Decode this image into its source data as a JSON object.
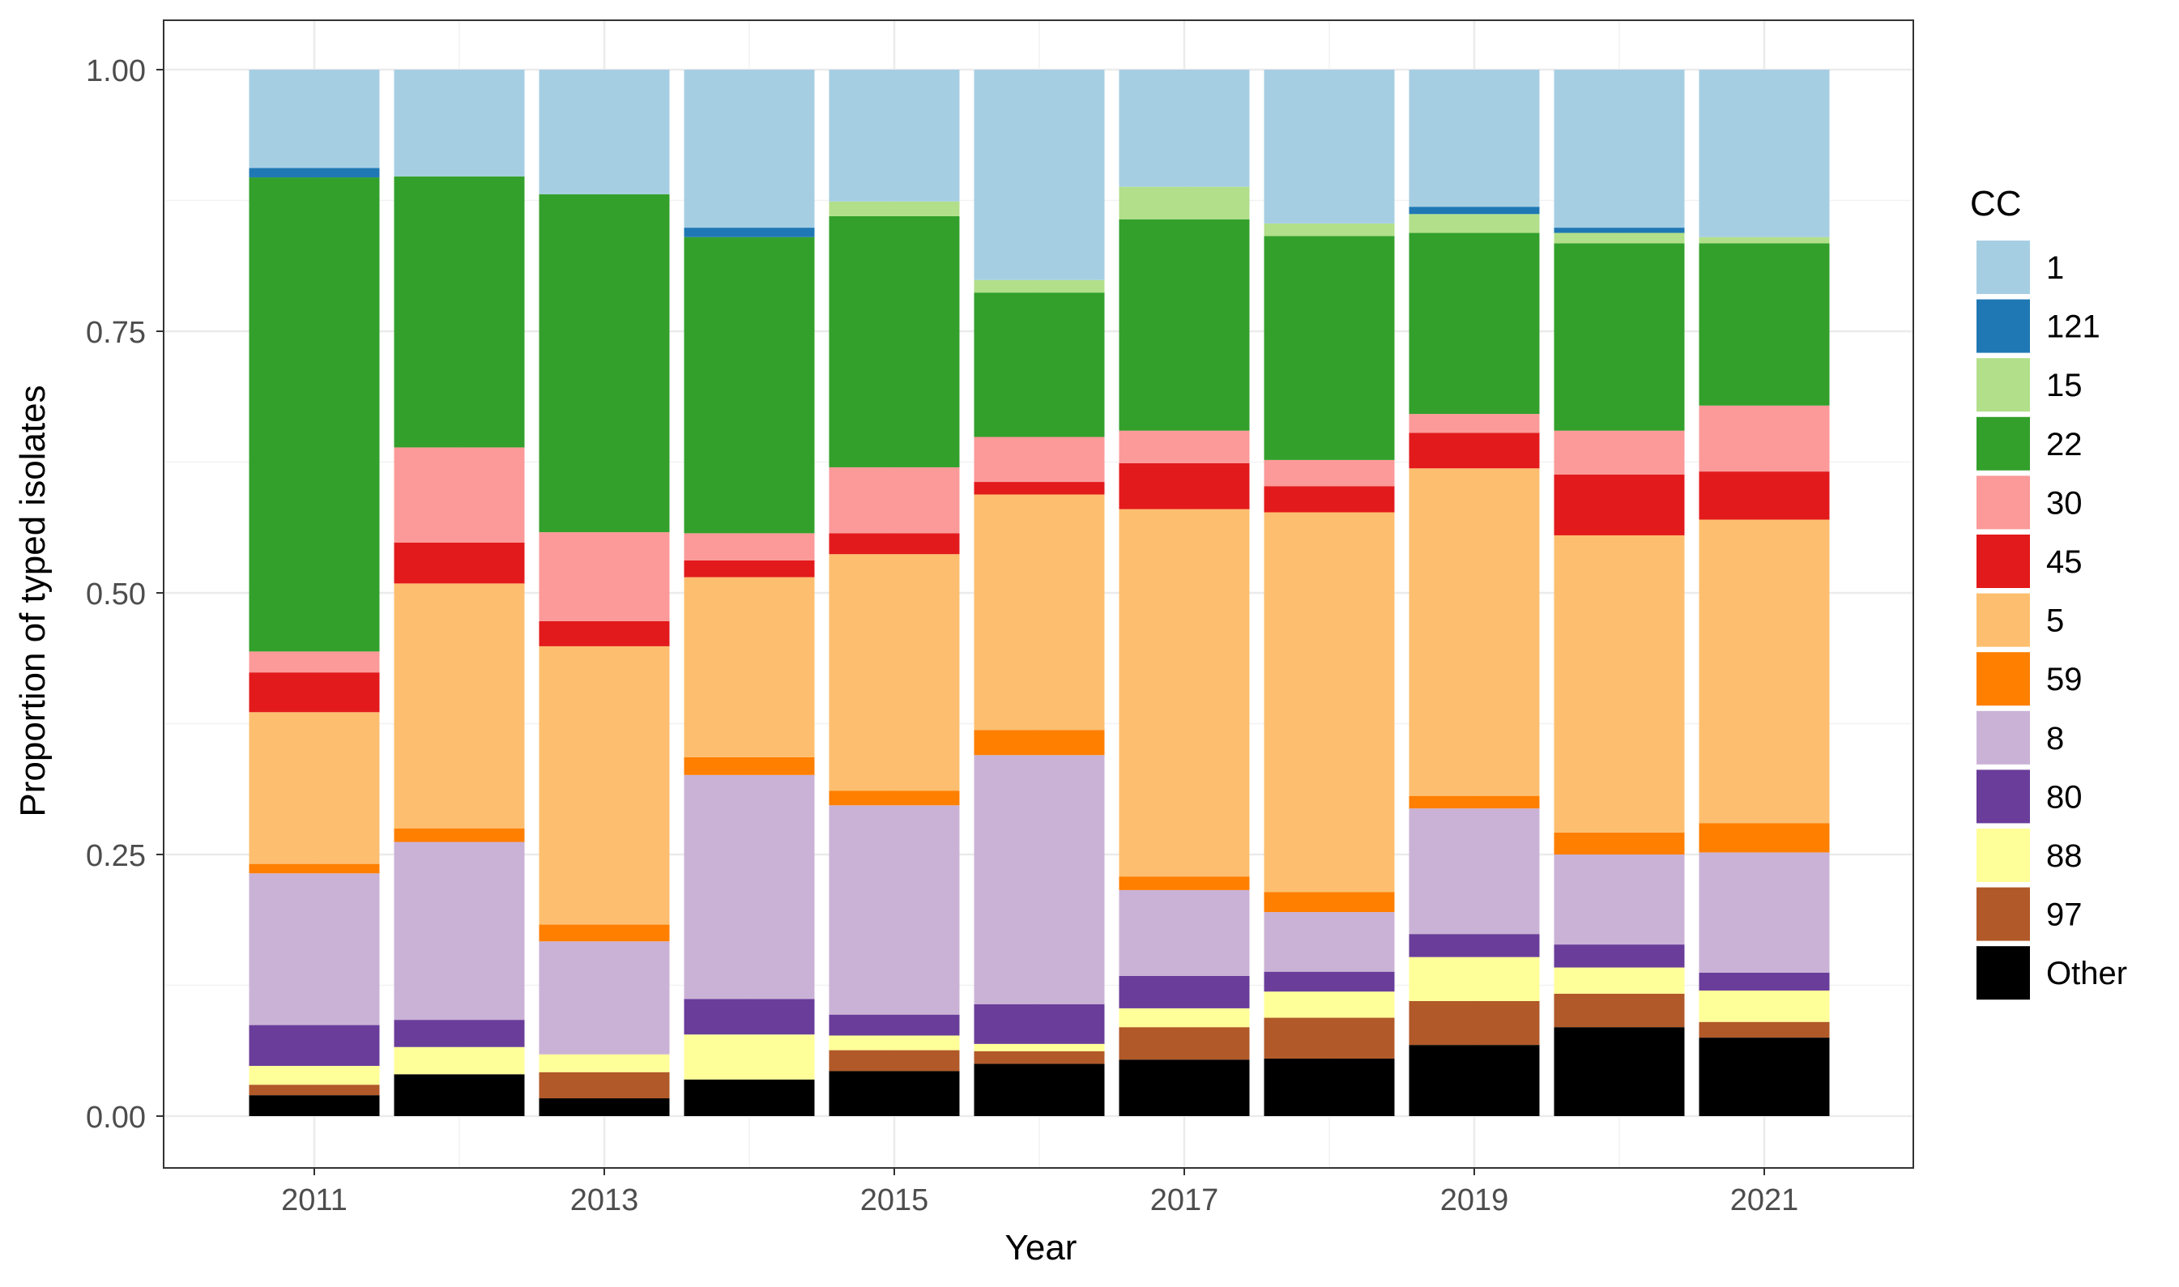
{
  "chart_data": {
    "type": "bar",
    "stacked": true,
    "xlabel": "Year",
    "ylabel": "Proportion of typed isolates",
    "ylim": [
      0,
      1
    ],
    "yticks": [
      "0.00",
      "0.25",
      "0.50",
      "0.75",
      "1.00"
    ],
    "yticks_values": [
      0,
      0.25,
      0.5,
      0.75,
      1
    ],
    "xticks": [
      "2011",
      "2013",
      "2015",
      "2017",
      "2019",
      "2021"
    ],
    "xticks_values": [
      2011,
      2013,
      2015,
      2017,
      2019,
      2021
    ],
    "categories": [
      2011,
      2012,
      2013,
      2014,
      2015,
      2016,
      2017,
      2018,
      2019,
      2020,
      2021
    ],
    "grid": true,
    "legend": {
      "title": "CC",
      "position": "right"
    },
    "series": [
      {
        "name": "Other",
        "color": "#000000",
        "values": [
          0.02,
          0.04,
          0.017,
          0.035,
          0.043,
          0.05,
          0.054,
          0.055,
          0.068,
          0.085,
          0.075
        ]
      },
      {
        "name": "97",
        "color": "#B15928",
        "values": [
          0.01,
          0.0,
          0.025,
          0.0,
          0.02,
          0.012,
          0.031,
          0.039,
          0.042,
          0.032,
          0.015
        ]
      },
      {
        "name": "88",
        "color": "#FFFF99",
        "values": [
          0.018,
          0.026,
          0.017,
          0.043,
          0.014,
          0.007,
          0.018,
          0.025,
          0.042,
          0.025,
          0.03
        ]
      },
      {
        "name": "80",
        "color": "#6A3D9A",
        "values": [
          0.039,
          0.026,
          0.0,
          0.034,
          0.02,
          0.038,
          0.031,
          0.019,
          0.022,
          0.022,
          0.017
        ]
      },
      {
        "name": "8",
        "color": "#CAB2D6",
        "values": [
          0.145,
          0.17,
          0.108,
          0.214,
          0.2,
          0.238,
          0.082,
          0.057,
          0.12,
          0.086,
          0.115
        ]
      },
      {
        "name": "59",
        "color": "#FF7F00",
        "values": [
          0.009,
          0.013,
          0.016,
          0.017,
          0.014,
          0.024,
          0.013,
          0.019,
          0.012,
          0.021,
          0.028
        ]
      },
      {
        "name": "5",
        "color": "#FDBF6F",
        "values": [
          0.145,
          0.234,
          0.266,
          0.172,
          0.226,
          0.225,
          0.351,
          0.363,
          0.313,
          0.284,
          0.29
        ]
      },
      {
        "name": "45",
        "color": "#E31A1C",
        "values": [
          0.038,
          0.039,
          0.024,
          0.016,
          0.02,
          0.012,
          0.044,
          0.025,
          0.034,
          0.058,
          0.046
        ]
      },
      {
        "name": "30",
        "color": "#FB9A99",
        "values": [
          0.02,
          0.091,
          0.085,
          0.026,
          0.063,
          0.043,
          0.031,
          0.025,
          0.018,
          0.042,
          0.063
        ]
      },
      {
        "name": "22",
        "color": "#33A02C",
        "values": [
          0.453,
          0.259,
          0.323,
          0.283,
          0.24,
          0.138,
          0.202,
          0.214,
          0.173,
          0.179,
          0.155
        ]
      },
      {
        "name": "15",
        "color": "#B2DF8A",
        "values": [
          0.0,
          0.0,
          0.0,
          0.0,
          0.014,
          0.012,
          0.031,
          0.012,
          0.018,
          0.01,
          0.006
        ]
      },
      {
        "name": "121",
        "color": "#1F78B4",
        "values": [
          0.009,
          0.0,
          0.0,
          0.009,
          0.0,
          0.0,
          0.0,
          0.0,
          0.007,
          0.005,
          0.0
        ]
      },
      {
        "name": "1",
        "color": "#A6CEE3",
        "values": [
          0.094,
          0.102,
          0.119,
          0.151,
          0.126,
          0.201,
          0.112,
          0.147,
          0.131,
          0.151,
          0.16
        ]
      }
    ],
    "legend_order": [
      "1",
      "121",
      "15",
      "22",
      "30",
      "45",
      "5",
      "59",
      "8",
      "80",
      "88",
      "97",
      "Other"
    ]
  }
}
